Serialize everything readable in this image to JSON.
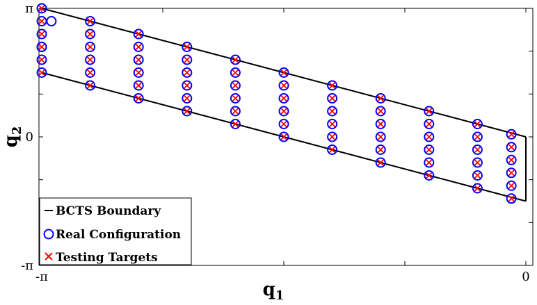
{
  "chart_data": {
    "type": "scatter",
    "xlabel": "q",
    "xlabel_sub": "1",
    "ylabel": "q",
    "ylabel_sub": "2",
    "xlim": [
      -3.3,
      0
    ],
    "ylim": [
      -3.1416,
      3.1416
    ],
    "x_ticks": [
      {
        "value": -3.1416,
        "label": "-π"
      },
      {
        "value": 0,
        "label": "0"
      }
    ],
    "y_ticks": [
      {
        "value": 3.1416,
        "label": "π"
      },
      {
        "value": 0,
        "label": "0"
      },
      {
        "value": -3.1416,
        "label": "-π"
      }
    ],
    "boundary": {
      "name": "BCTS Boundary",
      "upper": [
        [
          -3.1416,
          3.1416
        ],
        [
          0,
          0
        ]
      ],
      "lower": [
        [
          -3.1416,
          1.5708
        ],
        [
          0,
          -1.5708
        ]
      ],
      "right": [
        [
          0,
          0
        ],
        [
          0,
          -1.5708
        ]
      ]
    },
    "columns": [
      {
        "q1": -3.1416,
        "q2": [
          3.1416,
          2.8274,
          2.5133,
          2.1991,
          1.885,
          1.5708
        ]
      },
      {
        "q1": -2.8274,
        "q2": [
          2.8274,
          2.5133,
          2.1991,
          1.885,
          1.5708,
          1.2566
        ]
      },
      {
        "q1": -2.5133,
        "q2": [
          2.5133,
          2.1991,
          1.885,
          1.5708,
          1.2566,
          0.9425
        ]
      },
      {
        "q1": -2.1991,
        "q2": [
          2.1991,
          1.885,
          1.5708,
          1.2566,
          0.9425,
          0.6283
        ]
      },
      {
        "q1": -1.885,
        "q2": [
          1.885,
          1.5708,
          1.2566,
          0.9425,
          0.6283,
          0.3142
        ]
      },
      {
        "q1": -1.5708,
        "q2": [
          1.5708,
          1.2566,
          0.9425,
          0.6283,
          0.3142,
          0.0
        ]
      },
      {
        "q1": -1.2566,
        "q2": [
          1.2566,
          0.9425,
          0.6283,
          0.3142,
          0.0,
          -0.3142
        ]
      },
      {
        "q1": -0.9425,
        "q2": [
          0.9425,
          0.6283,
          0.3142,
          0.0,
          -0.3142,
          -0.6283
        ]
      },
      {
        "q1": -0.6283,
        "q2": [
          0.6283,
          0.3142,
          0.0,
          -0.3142,
          -0.6283,
          -0.9425
        ]
      },
      {
        "q1": -0.3142,
        "q2": [
          0.3142,
          0.0,
          -0.3142,
          -0.6283,
          -0.9425,
          -1.2566
        ]
      },
      {
        "q1": -0.0942,
        "q2": [
          0.0628,
          -0.2513,
          -0.5655,
          -0.8796,
          -1.1938,
          -1.5079
        ]
      }
    ],
    "real_configuration_offsets": [
      {
        "q1": -3.0789,
        "q2": 2.8274
      },
      {
        "q1": -3.1416,
        "q2": 2.1991
      }
    ],
    "legend": {
      "position": "bottom-left",
      "entries": [
        {
          "label": "BCTS Boundary",
          "marker": "line",
          "color": "#000000"
        },
        {
          "label": "Real Configuration",
          "marker": "circle",
          "color": "#0000ff"
        },
        {
          "label": "Testing Targets",
          "marker": "x",
          "color": "#ff0000"
        }
      ]
    },
    "colors": {
      "circle": "#0000ff",
      "cross": "#ff0000",
      "line": "#000000"
    }
  }
}
